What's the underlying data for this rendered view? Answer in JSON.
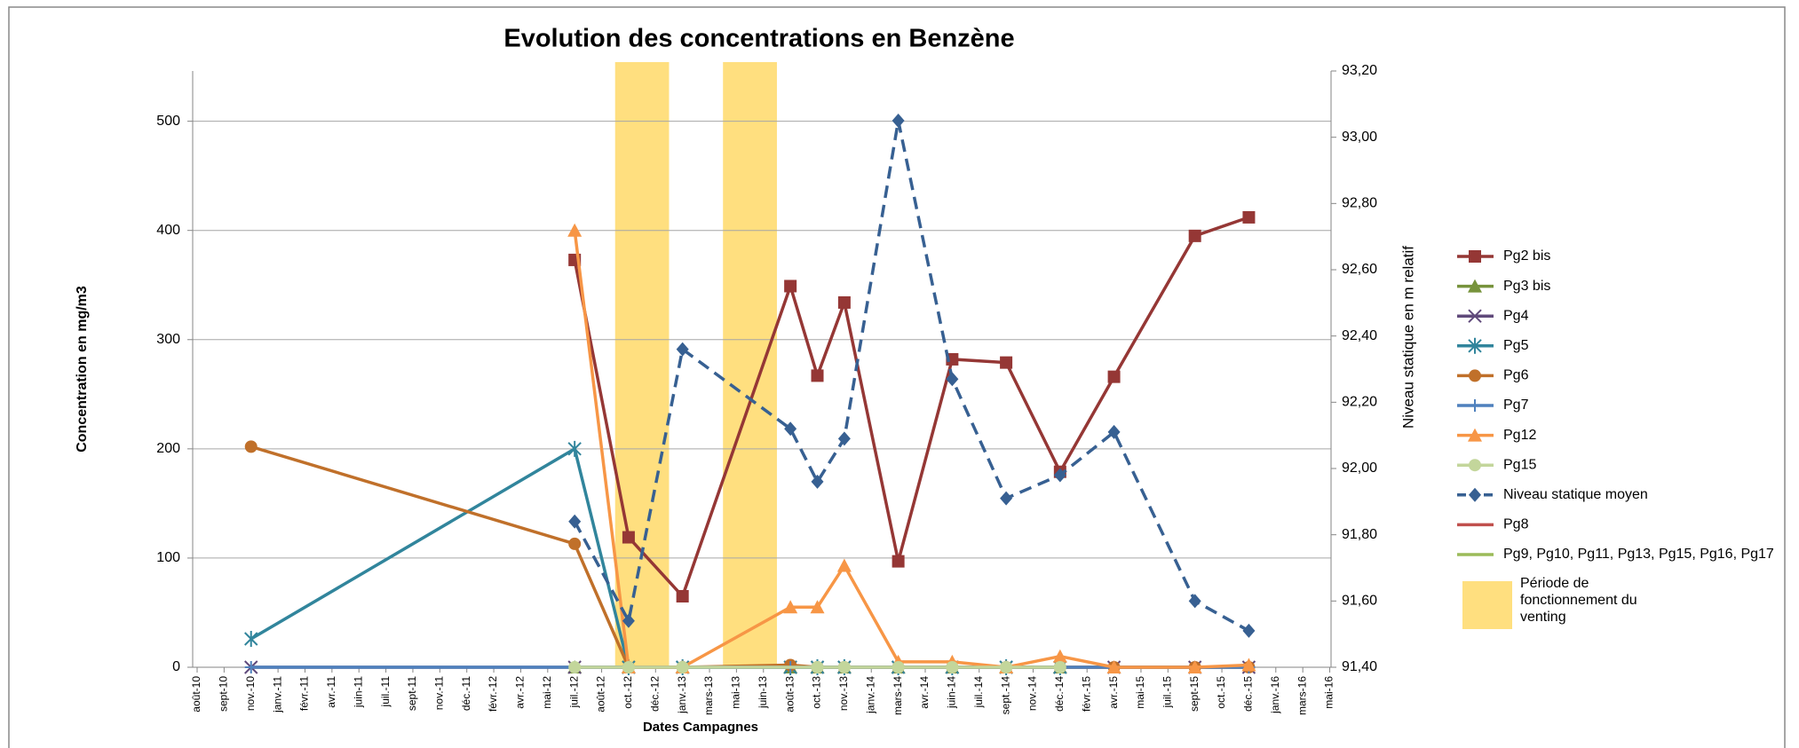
{
  "chart_data": {
    "type": "line",
    "title": "Evolution des concentrations en Benzène",
    "x_label": "Dates Campagnes",
    "y_label": "Concentration en mg/m3",
    "y2_label": "Niveau statique en m relatif",
    "categories": [
      "août-10",
      "sept-10",
      "nov.-10",
      "janv.-11",
      "févr.-11",
      "avr.-11",
      "juin-11",
      "juil.-11",
      "sept-11",
      "nov.-11",
      "déc.-11",
      "févr.-12",
      "avr.-12",
      "mai-12",
      "juil.-12",
      "août-12",
      "oct.-12",
      "déc.-12",
      "janv.-13",
      "mars-13",
      "mai-13",
      "juin-13",
      "août-13",
      "oct.-13",
      "nov.-13",
      "janv.-14",
      "mars-14",
      "avr.-14",
      "juin-14",
      "juil.-14",
      "sept.-14",
      "nov.-14",
      "déc.-14",
      "févr.-15",
      "avr.-15",
      "mai-15",
      "juil.-15",
      "sept-15",
      "oct.-15",
      "déc.-15",
      "janv.-16",
      "mars-16",
      "mai-16"
    ],
    "ylim": [
      0,
      546
    ],
    "yticks": [
      0,
      100,
      200,
      300,
      400,
      500
    ],
    "grid": true,
    "y2lim": [
      91.4,
      93.2
    ],
    "y2ticks": [
      {
        "value": 91.4,
        "label": "91,40"
      },
      {
        "value": 91.6,
        "label": "91,60"
      },
      {
        "value": 91.8,
        "label": "91,80"
      },
      {
        "value": 92.0,
        "label": "92,00"
      },
      {
        "value": 92.2,
        "label": "92,20"
      },
      {
        "value": 92.4,
        "label": "92,40"
      },
      {
        "value": 92.6,
        "label": "92,60"
      },
      {
        "value": 92.8,
        "label": "92,80"
      },
      {
        "value": 93.0,
        "label": "93,00"
      },
      {
        "value": 93.2,
        "label": "93,20"
      }
    ],
    "legend": "right",
    "venting": {
      "label": "Période de fonctionnement du venting",
      "color": "#ffdf7f",
      "periods": [
        [
          "oct.-12",
          "déc.-12"
        ],
        [
          "mai-13",
          "juin-13"
        ]
      ]
    },
    "series": [
      {
        "name": "Pg2 bis",
        "color": "#953735",
        "marker": "square",
        "x": [
          "juil.-12",
          "oct.-12",
          "janv.-13",
          "août-13",
          "oct.-13",
          "nov.-13",
          "mars-14",
          "juin-14",
          "sept.-14",
          "déc.-14",
          "avr.-15",
          "sept-15",
          "déc.-15"
        ],
        "values": [
          373,
          119,
          65,
          349,
          267,
          334,
          97,
          282,
          279,
          179,
          266,
          395,
          412
        ]
      },
      {
        "name": "Pg3 bis",
        "color": "#77933c",
        "marker": "triangle",
        "x": [
          "juil.-12",
          "oct.-12",
          "janv.-13",
          "août-13",
          "oct.-13",
          "nov.-13",
          "mars-14",
          "juin-14",
          "sept.-14",
          "déc.-14"
        ],
        "values": [
          0,
          0,
          0,
          0,
          0,
          0,
          0,
          0,
          0,
          0
        ]
      },
      {
        "name": "Pg4",
        "color": "#604a7b",
        "marker": "x",
        "x": [
          "nov.-10",
          "juil.-12",
          "oct.-12",
          "janv.-13",
          "août-13",
          "oct.-13",
          "nov.-13",
          "mars-14",
          "juin-14",
          "sept.-14",
          "déc.-14",
          "avr.-15",
          "sept-15",
          "déc.-15"
        ],
        "values": [
          0,
          0,
          0,
          0,
          0,
          0,
          0,
          0,
          0,
          0,
          0,
          0,
          0,
          0
        ]
      },
      {
        "name": "Pg5",
        "color": "#31859c",
        "marker": "star",
        "x": [
          "nov.-10",
          "juil.-12",
          "oct.-12",
          "janv.-13",
          "août-13",
          "oct.-13",
          "nov.-13",
          "mars-14",
          "juin-14",
          "sept.-14",
          "déc.-14"
        ],
        "values": [
          26,
          200,
          0,
          0,
          0,
          0,
          0,
          0,
          0,
          0,
          0
        ]
      },
      {
        "name": "Pg6",
        "color": "#c0702a",
        "marker": "circle",
        "x": [
          "nov.-10",
          "juil.-12",
          "oct.-12",
          "janv.-13",
          "août-13",
          "oct.-13",
          "nov.-13",
          "mars-14",
          "juin-14",
          "sept.-14",
          "déc.-14",
          "avr.-15",
          "sept-15",
          "déc.-15"
        ],
        "values": [
          202,
          113,
          0,
          0,
          2,
          0,
          0,
          0,
          0,
          0,
          0,
          0,
          0,
          0
        ]
      },
      {
        "name": "Pg7",
        "color": "#4f81bd",
        "marker": "plus",
        "x": [
          "nov.-10",
          "juil.-12",
          "oct.-12",
          "janv.-13",
          "août-13",
          "oct.-13",
          "nov.-13",
          "mars-14",
          "juin-14",
          "sept.-14",
          "déc.-14",
          "avr.-15",
          "sept-15",
          "déc.-15"
        ],
        "values": [
          0,
          0,
          0,
          0,
          0,
          0,
          0,
          0,
          0,
          0,
          0,
          0,
          0,
          0
        ]
      },
      {
        "name": "Pg12",
        "color": "#f79646",
        "marker": "triangle",
        "x": [
          "juil.-12",
          "oct.-12",
          "janv.-13",
          "août-13",
          "oct.-13",
          "nov.-13",
          "mars-14",
          "juin-14",
          "sept.-14",
          "déc.-14",
          "avr.-15",
          "sept-15",
          "déc.-15"
        ],
        "values": [
          400,
          0,
          0,
          55,
          55,
          93,
          5,
          5,
          0,
          10,
          0,
          0,
          2
        ]
      },
      {
        "name": "Pg15",
        "color": "#c3d69b",
        "marker": "circle",
        "x": [
          "juil.-12",
          "oct.-12",
          "janv.-13",
          "oct.-13",
          "nov.-13",
          "mars-14",
          "juin-14",
          "sept.-14",
          "déc.-14"
        ],
        "values": [
          0,
          0,
          0,
          0,
          0,
          0,
          0,
          0,
          0
        ]
      },
      {
        "name": "Niveau  statique moyen",
        "color": "#376092",
        "marker": "diamond",
        "dash": true,
        "axis": "y2",
        "x": [
          "juil.-12",
          "oct.-12",
          "janv.-13",
          "août-13",
          "oct.-13",
          "nov.-13",
          "mars-14",
          "juin-14",
          "sept.-14",
          "déc.-14",
          "avr.-15",
          "sept-15",
          "déc.-15"
        ],
        "values": [
          91.84,
          91.54,
          92.36,
          92.12,
          91.96,
          92.09,
          93.05,
          92.27,
          91.91,
          91.98,
          92.11,
          91.6,
          91.51
        ]
      },
      {
        "name": "Pg8",
        "color": "#c0504d",
        "marker": "none",
        "x": [],
        "values": []
      },
      {
        "name": "Pg9, Pg10, Pg11, Pg13, Pg15, Pg16, Pg17",
        "color": "#9bbb59",
        "marker": "none",
        "x": [],
        "values": []
      }
    ]
  }
}
